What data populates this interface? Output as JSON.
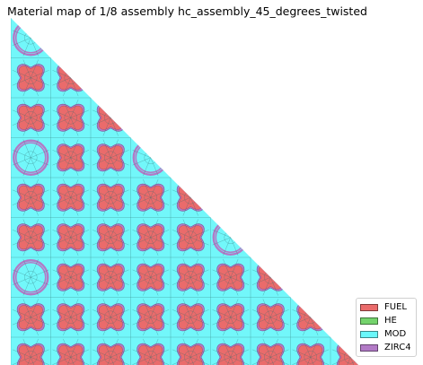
{
  "title": "Material map of 1/8 assembly hc_assembly_45_degrees_twisted",
  "materials": [
    {
      "name": "FUEL",
      "color": "#ea6b6b"
    },
    {
      "name": "HE",
      "color": "#74d36c"
    },
    {
      "name": "MOD",
      "color": "#6af7fa"
    },
    {
      "name": "ZIRC4",
      "color": "#b27ac6"
    }
  ],
  "lattice": {
    "cells_per_side": 9,
    "layout": [
      "G",
      "PP",
      "PPP",
      "GPPG",
      "PPPPP",
      "PPPPPG",
      "GPPPPPP",
      "PPPPPPPP",
      "PPPPPPPPP"
    ]
  },
  "legend_position": "lower-right"
}
